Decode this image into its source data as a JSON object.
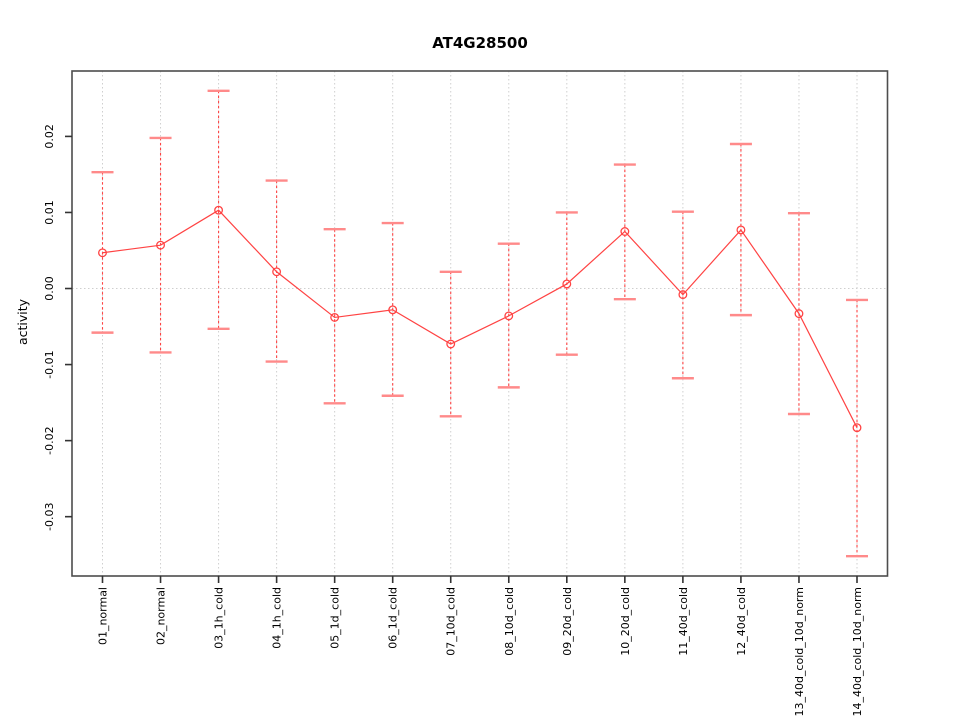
{
  "chart": {
    "title": "AT4G28500",
    "ylabel": "activity",
    "xlabel": ""
  },
  "chart_data": {
    "type": "line",
    "title": "AT4G28500",
    "xlabel": "",
    "ylabel": "activity",
    "legend": "none",
    "grid": "dotted vertical gridline at every category; dotted horizontal gridline at y=0 only",
    "marker": "open-circle",
    "error_bar_style": "dashed vertical line with horizontal caps",
    "categories": [
      "01_normal",
      "02_normal",
      "03_1h_cold",
      "04_1h_cold",
      "05_1d_cold",
      "06_1d_cold",
      "07_10d_cold",
      "08_10d_cold",
      "09_20d_cold",
      "10_20d_cold",
      "11_40d_cold",
      "12_40d_cold",
      "13_40d_cold_10d_norm",
      "14_40d_cold_10d_norm"
    ],
    "values": [
      0.0047,
      0.0057,
      0.0103,
      0.0022,
      -0.0038,
      -0.0028,
      -0.0073,
      -0.0036,
      0.0006,
      0.0075,
      -0.0008,
      0.0077,
      -0.0033,
      -0.0183
    ],
    "error_high": [
      0.0153,
      0.0198,
      0.026,
      0.0142,
      0.0078,
      0.0086,
      0.0022,
      0.0059,
      0.01,
      0.0163,
      0.0101,
      0.019,
      0.0099,
      -0.0015
    ],
    "error_low": [
      -0.0058,
      -0.0084,
      -0.0053,
      -0.0096,
      -0.0151,
      -0.0141,
      -0.0168,
      -0.013,
      -0.0087,
      -0.0014,
      -0.0118,
      -0.0035,
      -0.0165,
      -0.0352
    ],
    "ytick_values": [
      0.02,
      0.01,
      0.0,
      -0.01,
      -0.02,
      -0.03
    ],
    "ytick_labels": [
      "0.02",
      "0.01",
      "0.00",
      "-0.01",
      "-0.02",
      "-0.03"
    ],
    "ylim": [
      -0.0378,
      0.0286
    ],
    "colors": {
      "series": "#ff4343",
      "error_cap": "#ff8a8a",
      "grid": "#cfcfcf",
      "frame": "#4d4d4d",
      "tick": "#333333",
      "text": "#000000",
      "background": "#ffffff"
    }
  }
}
